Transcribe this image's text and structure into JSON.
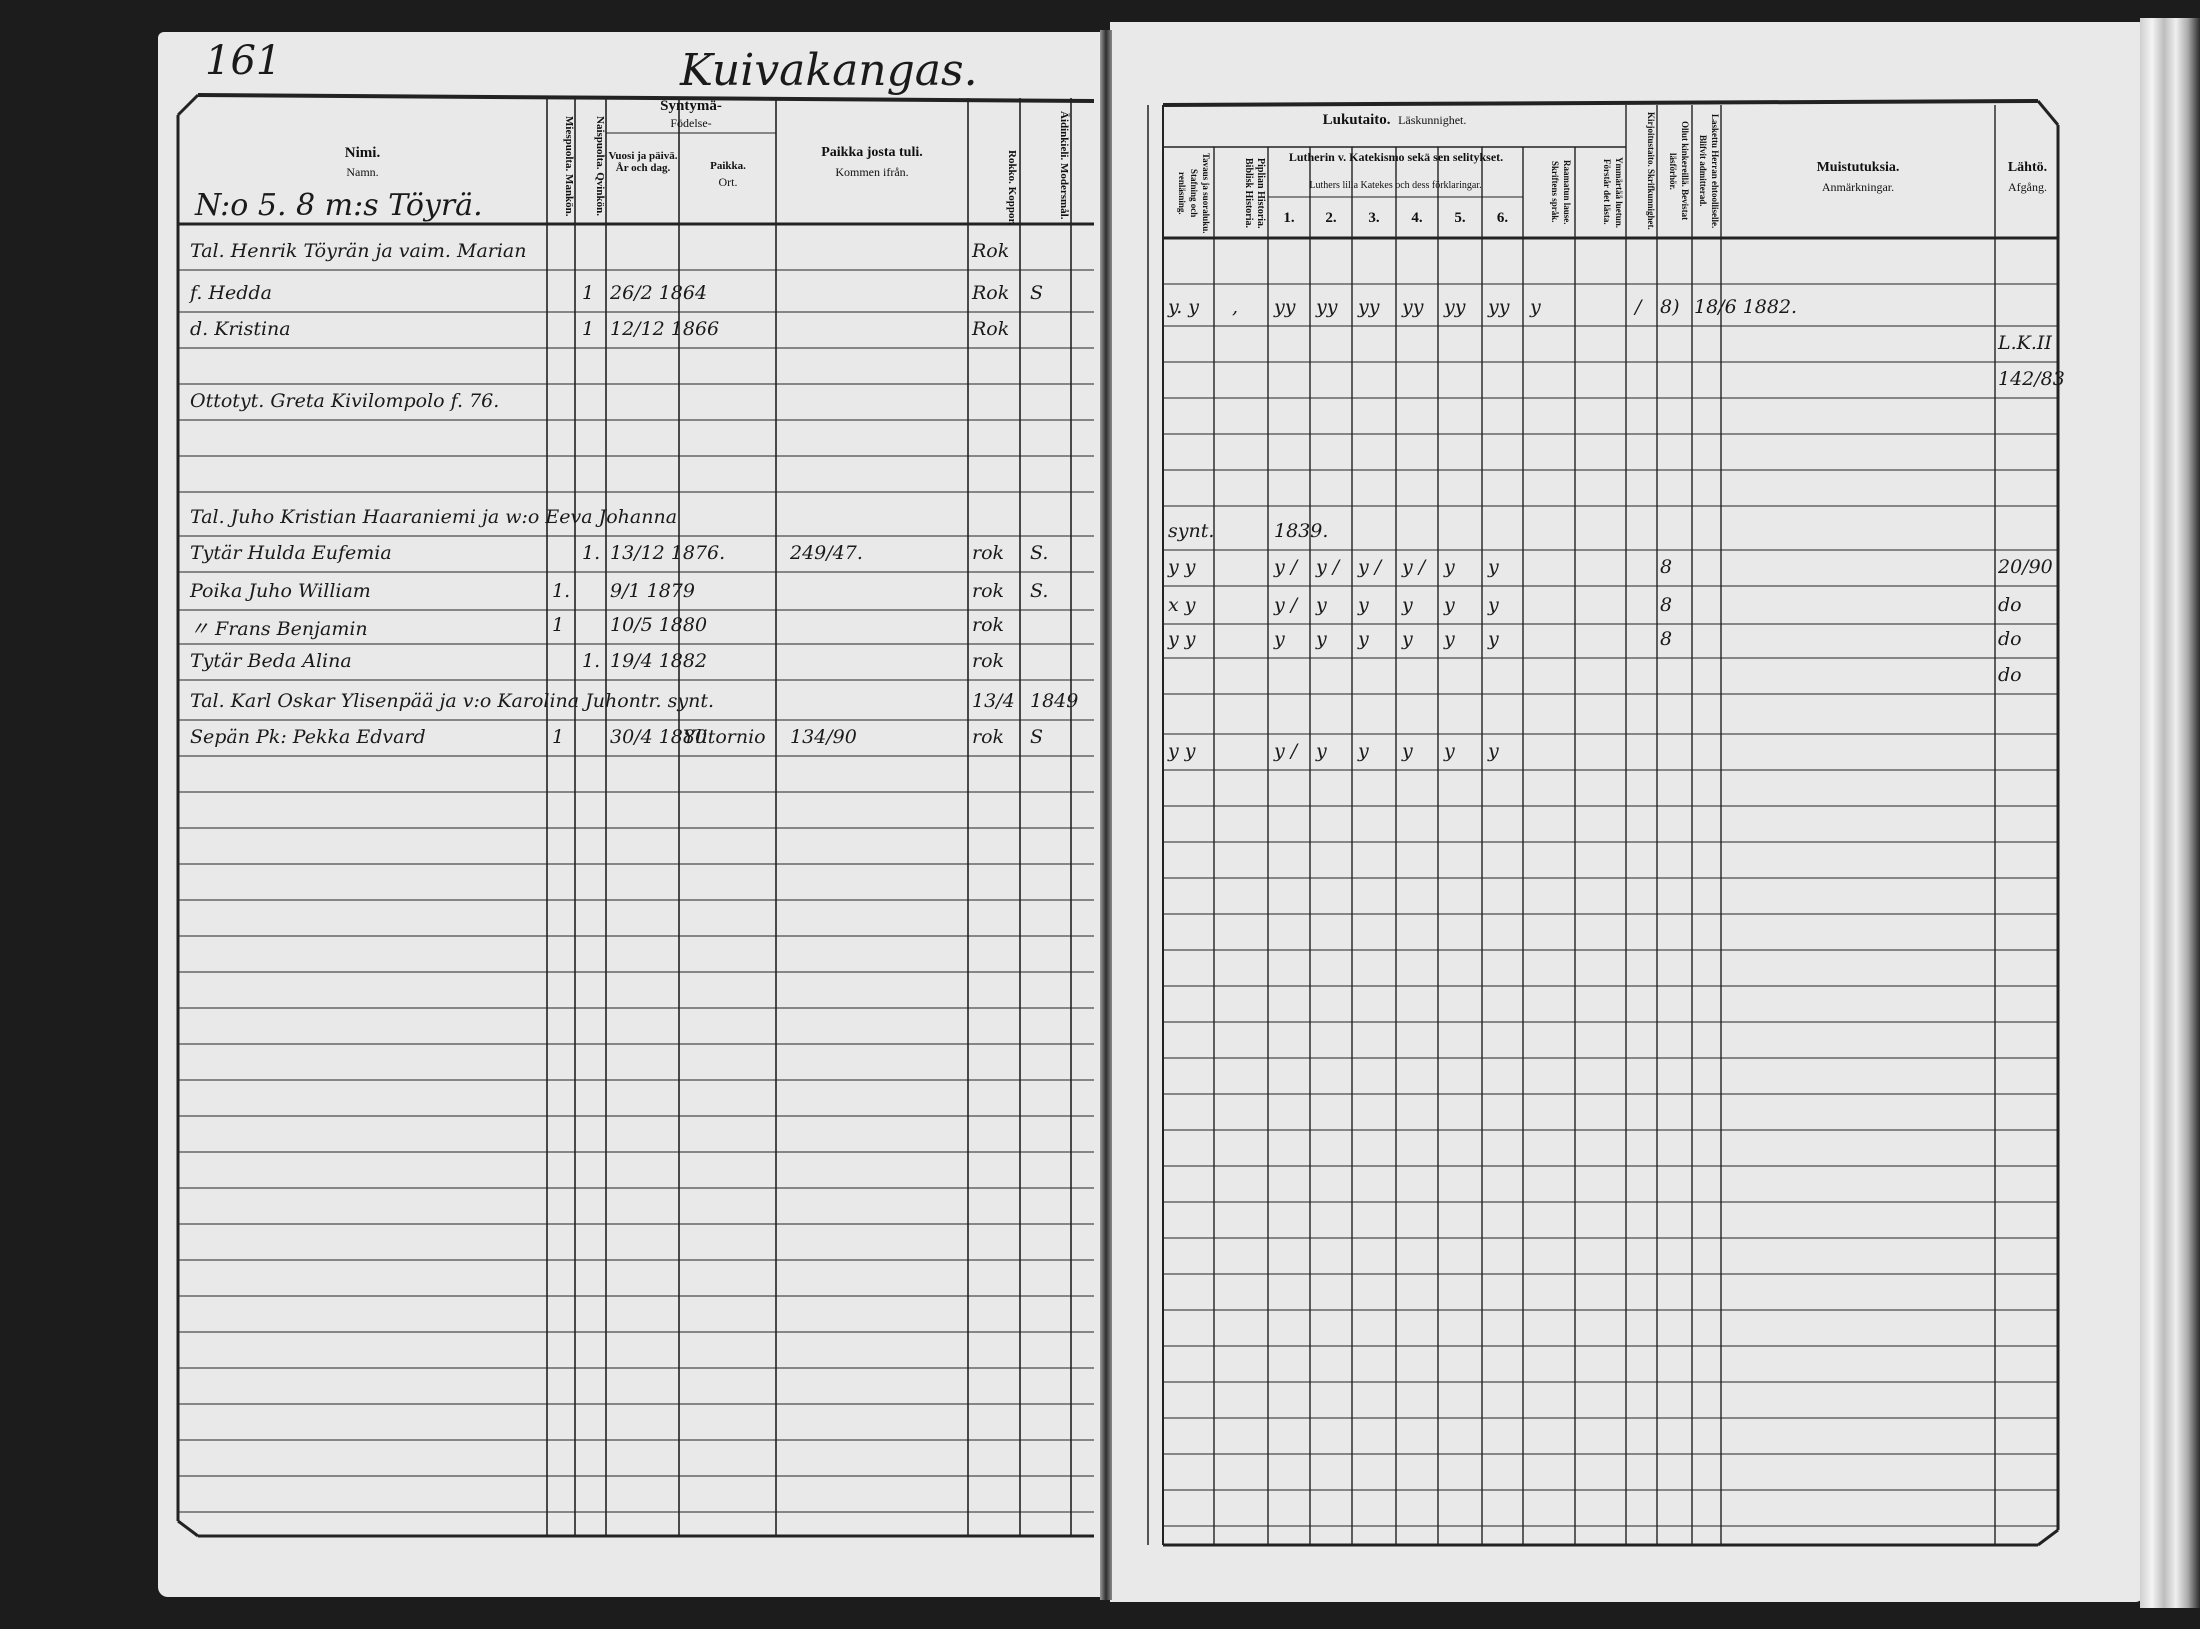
{
  "left": {
    "page_number": "161",
    "village_title": "Kuivakangas.",
    "headers": {
      "name_fi": "Nimi.",
      "name_sv": "Namn.",
      "male": "Miespuolta. Mankön.",
      "female": "Naispuolta. Qvinkön.",
      "birth_fi": "Syntymä-",
      "birth_sv": "Födelse-",
      "date": "Vuosi ja päivä. År och dag.",
      "place_fi": "Paikka.",
      "place_sv": "Ort.",
      "from_fi": "Paikka josta tuli.",
      "from_sv": "Kommen ifrån.",
      "rokko": "Rokko. Koppor.",
      "lang": "Äidinkieli. Modersmål."
    },
    "household": "N:o 5. 8 m:s Töyrä.",
    "rows": [
      {
        "name": "Tal. Henrik Töyrän ja vaim. Marian",
        "male": "",
        "female": "",
        "date": "",
        "place": "",
        "from": "",
        "rokko": "Rok",
        "lang": ""
      },
      {
        "name": "f. Hedda",
        "male": "",
        "female": "1",
        "date": "26/2 1864",
        "place": "",
        "from": "",
        "rokko": "Rok",
        "lang": "S"
      },
      {
        "name": "d. Kristina",
        "male": "",
        "female": "1",
        "date": "12/12 1866",
        "place": "",
        "from": "",
        "rokko": "Rok",
        "lang": ""
      },
      {
        "name": "",
        "male": "",
        "female": "",
        "date": "",
        "place": "",
        "from": "",
        "rokko": "",
        "lang": ""
      },
      {
        "name": "Ottotyt. Greta Kivilompolo f. 76.",
        "male": "",
        "female": "",
        "date": "",
        "place": "",
        "from": "",
        "rokko": "",
        "lang": ""
      },
      {
        "name": "",
        "male": "",
        "female": "",
        "date": "",
        "place": "",
        "from": "",
        "rokko": "",
        "lang": ""
      },
      {
        "name": "",
        "male": "",
        "female": "",
        "date": "",
        "place": "",
        "from": "",
        "rokko": "",
        "lang": ""
      },
      {
        "name": "Tal. Juho Kristian Haaraniemi ja w:o Eeva Johanna",
        "male": "",
        "female": "",
        "date": "",
        "place": "",
        "from": "",
        "rokko": "",
        "lang": ""
      },
      {
        "name": "Tytär Hulda Eufemia",
        "male": "",
        "female": "1.",
        "date": "13/12 1876.",
        "place": "",
        "from": "249/47.",
        "rokko": "rok",
        "lang": "S."
      },
      {
        "name": "Poika Juho William",
        "male": "1.",
        "female": "",
        "date": "9/1 1879",
        "place": "",
        "from": "",
        "rokko": "rok",
        "lang": "S."
      },
      {
        "name": "〃 Frans Benjamin",
        "male": "1",
        "female": "",
        "date": "10/5 1880",
        "place": "",
        "from": "",
        "rokko": "rok",
        "lang": ""
      },
      {
        "name": "Tytär Beda Alina",
        "male": "",
        "female": "1.",
        "date": "19/4 1882",
        "place": "",
        "from": "",
        "rokko": "rok",
        "lang": ""
      },
      {
        "name": "Tal. Karl Oskar Ylisenpää ja v:o Karolina Juhontr. synt.",
        "male": "",
        "female": "",
        "date": "",
        "place": "",
        "from": "",
        "rokko": "13/4",
        "lang": "1849"
      },
      {
        "name": "Sepän Pk: Pekka Edvard",
        "male": "1",
        "female": "",
        "date": "30/4 1880",
        "place": "Ylitornio",
        "from": "134/90",
        "rokko": "rok",
        "lang": "S"
      }
    ]
  },
  "right": {
    "headers": {
      "reading_fi": "Lukutaito.",
      "reading_sv": "Läskunnighet.",
      "spelling": "Tavaus ja suoraluku. Stafning och renläsning.",
      "bible": "Piplian Historia. Biblisk Historia.",
      "catechism_fi": "Lutherin v. Katekismo sekä sen selitykset.",
      "catechism_sv": "Luthers lilla Katekes och dess förklaringar.",
      "catechism_parts": [
        "1.",
        "2.",
        "3.",
        "4.",
        "5.",
        "6."
      ],
      "scripture": "Raamatun lause. Skriftens språk.",
      "understands": "Ymmärtää luetun. Förstår det lästa.",
      "writing": "Kirjoitustaito. Skrifkunnighet.",
      "hearings": "Ollut kinkereillä. Bevistat läsförhör.",
      "communion": "Laskettu Herran ehtoolliselle. Blifvit admitterad.",
      "notes_fi": "Muistutuksia.",
      "notes_sv": "Anmärkningar.",
      "departure_fi": "Lähtö.",
      "departure_sv": "Afgång."
    },
    "rows": [
      {
        "spell": "",
        "bible": "",
        "cat": [
          "",
          "",
          "",
          "",
          "",
          ""
        ],
        "scripture": "",
        "understands": "",
        "writing": "",
        "hearings": "",
        "communion": "",
        "notes": "",
        "departure": ""
      },
      {
        "spell": "y. y",
        "bible": ",",
        "cat": [
          "yy",
          "yy",
          "yy",
          "yy",
          "yy",
          "yy"
        ],
        "scripture": "y",
        "understands": "",
        "writing": "/",
        "hearings": "8)",
        "communion": "18/6 1882.",
        "notes": "",
        "departure": ""
      },
      {
        "spell": "",
        "bible": "",
        "cat": [
          "",
          "",
          "",
          "",
          "",
          ""
        ],
        "scripture": "",
        "understands": "",
        "writing": "",
        "hearings": "",
        "communion": "",
        "notes": "",
        "departure": "L.K.II"
      },
      {
        "spell": "",
        "bible": "",
        "cat": [
          "",
          "",
          "",
          "",
          "",
          ""
        ],
        "scripture": "",
        "understands": "",
        "writing": "",
        "hearings": "",
        "communion": "",
        "notes": "",
        "departure": "142/83"
      },
      {
        "spell": "",
        "bible": "",
        "cat": [
          "",
          "",
          "",
          "",
          "",
          ""
        ],
        "scripture": "",
        "understands": "",
        "writing": "",
        "hearings": "",
        "communion": "",
        "notes": "",
        "departure": ""
      },
      {
        "spell": "",
        "bible": "",
        "cat": [
          "",
          "",
          "",
          "",
          "",
          ""
        ],
        "scripture": "",
        "understands": "",
        "writing": "",
        "hearings": "",
        "communion": "",
        "notes": "",
        "departure": ""
      },
      {
        "spell": "",
        "bible": "",
        "cat": [
          "",
          "",
          "",
          "",
          "",
          ""
        ],
        "scripture": "",
        "understands": "",
        "writing": "",
        "hearings": "",
        "communion": "",
        "notes": "",
        "departure": ""
      },
      {
        "spell": "synt.",
        "bible": "",
        "cat": [
          "1839.",
          "",
          "",
          "",
          "",
          ""
        ],
        "scripture": "",
        "understands": "",
        "writing": "",
        "hearings": "",
        "communion": "",
        "notes": "",
        "departure": ""
      },
      {
        "spell": "y y",
        "bible": "",
        "cat": [
          "y /",
          "y /",
          "y /",
          "y /",
          "y",
          "y"
        ],
        "scripture": "",
        "understands": "",
        "writing": "",
        "hearings": "8",
        "communion": "",
        "notes": "",
        "departure": "20/90"
      },
      {
        "spell": "x y",
        "bible": "",
        "cat": [
          "y /",
          "y",
          "y",
          "y",
          "y",
          "y"
        ],
        "scripture": "",
        "understands": "",
        "writing": "",
        "hearings": "8",
        "communion": "",
        "notes": "",
        "departure": "do"
      },
      {
        "spell": "y y",
        "bible": "",
        "cat": [
          "y",
          "y",
          "y",
          "y",
          "y",
          "y"
        ],
        "scripture": "",
        "understands": "",
        "writing": "",
        "hearings": "8",
        "communion": "",
        "notes": "",
        "departure": "do"
      },
      {
        "spell": "",
        "bible": "",
        "cat": [
          "",
          "",
          "",
          "",
          "",
          ""
        ],
        "scripture": "",
        "understands": "",
        "writing": "",
        "hearings": "",
        "communion": "",
        "notes": "",
        "departure": "do"
      },
      {
        "spell": "",
        "bible": "",
        "cat": [
          "",
          "",
          "",
          "",
          "",
          ""
        ],
        "scripture": "",
        "understands": "",
        "writing": "",
        "hearings": "",
        "communion": "",
        "notes": "",
        "departure": ""
      },
      {
        "spell": "y y",
        "bible": "",
        "cat": [
          "y /",
          "y",
          "y",
          "y",
          "y",
          "y"
        ],
        "scripture": "",
        "understands": "",
        "writing": "",
        "hearings": "",
        "communion": "",
        "notes": "",
        "departure": ""
      }
    ]
  }
}
